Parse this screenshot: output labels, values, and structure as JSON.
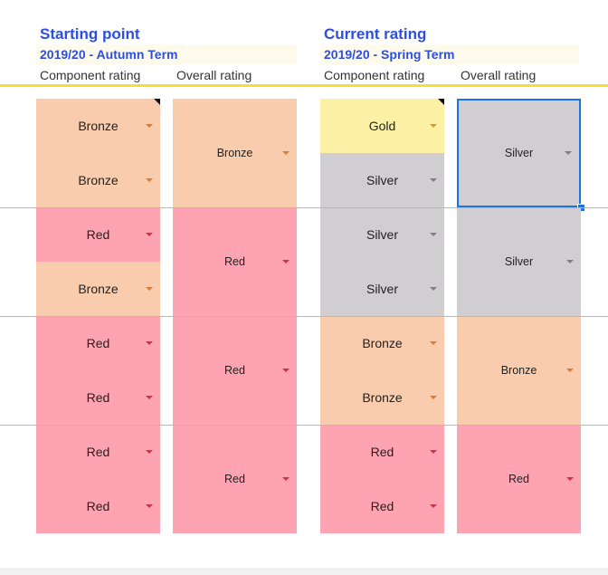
{
  "starting": {
    "title": "Starting point",
    "term": "2019/20 - Autumn Term",
    "component_header": "Component rating",
    "overall_header": "Overall rating",
    "component": [
      "Bronze",
      "Bronze",
      "Red",
      "Bronze",
      "Red",
      "Red",
      "Red",
      "Red"
    ],
    "overall": [
      "Bronze",
      "Red",
      "Red",
      "Red"
    ]
  },
  "current": {
    "title": "Current rating",
    "term": "2019/20 - Spring Term",
    "component_header": "Component rating",
    "overall_header": "Overall rating",
    "component": [
      "Gold",
      "Silver",
      "Silver",
      "Silver",
      "Bronze",
      "Bronze",
      "Red",
      "Red"
    ],
    "overall": [
      "Silver",
      "Silver",
      "Bronze",
      "Red"
    ]
  },
  "colors": {
    "Bronze": "#f8ccad",
    "Red": "#fea3b1",
    "Gold": "#fdf1a6",
    "Silver": "#d0ced0",
    "accent_blue": "#2d4ee0",
    "selection": "#1a73e8",
    "rule_yellow": "#f5e030"
  }
}
